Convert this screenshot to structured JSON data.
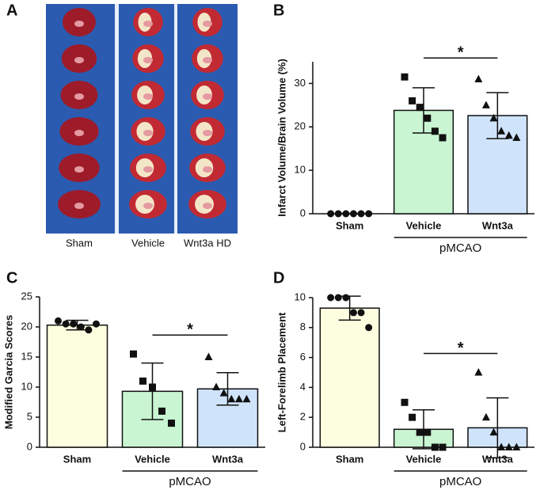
{
  "photo": {
    "panel": "A",
    "captions": [
      "Sham",
      "Vehicle",
      "Wnt3a HD"
    ]
  },
  "chart_data": [
    {
      "type": "bar",
      "panel": "B",
      "ylabel": "Infarct Volume/Brain Volume (%)",
      "categories": [
        "Sham",
        "Vehicle",
        "Wnt3a"
      ],
      "values": [
        0,
        23.8,
        22.6
      ],
      "errors": [
        0,
        5.2,
        5.3
      ],
      "colors": [
        "#fdfddf",
        "#c9f5d2",
        "#cfe3fa"
      ],
      "markers": [
        "circle",
        "square",
        "triangle"
      ],
      "points": [
        [
          0,
          0,
          0,
          0,
          0,
          0
        ],
        [
          31.5,
          26,
          24.5,
          22,
          19,
          17.5
        ],
        [
          31,
          25,
          22,
          19,
          18,
          17.5
        ]
      ],
      "ylim": [
        0,
        35
      ],
      "yticks": [
        0,
        10,
        20,
        30
      ],
      "group": {
        "label": "pMCAO",
        "categories": [
          "Vehicle",
          "Wnt3a"
        ]
      },
      "annotation": {
        "text": "*",
        "between": [
          "Vehicle",
          "Wnt3a"
        ]
      }
    },
    {
      "type": "bar",
      "panel": "C",
      "ylabel": "Modified Garcia Scores",
      "categories": [
        "Sham",
        "Vehicle",
        "Wnt3a"
      ],
      "values": [
        20.3,
        9.3,
        9.7
      ],
      "errors": [
        0.8,
        4.7,
        2.7
      ],
      "colors": [
        "#fdfddf",
        "#c9f5d2",
        "#cfe3fa"
      ],
      "markers": [
        "circle",
        "square",
        "triangle"
      ],
      "points": [
        [
          21,
          20.5,
          20.5,
          20,
          19.5,
          20.5
        ],
        [
          15.5,
          11,
          10,
          6,
          4
        ],
        [
          15,
          10,
          9,
          8,
          8,
          8
        ]
      ],
      "ylim": [
        0,
        25
      ],
      "yticks": [
        0,
        5,
        10,
        15,
        20,
        25
      ],
      "group": {
        "label": "pMCAO",
        "categories": [
          "Vehicle",
          "Wnt3a"
        ]
      },
      "annotation": {
        "text": "*",
        "between": [
          "Vehicle",
          "Wnt3a"
        ]
      }
    },
    {
      "type": "bar",
      "panel": "D",
      "ylabel": "Left-Forelimb Placement",
      "categories": [
        "Sham",
        "Vehicle",
        "Wnt3a"
      ],
      "values": [
        9.3,
        1.2,
        1.3
      ],
      "errors": [
        0.8,
        1.3,
        2.0
      ],
      "colors": [
        "#fdfddf",
        "#c9f5d2",
        "#cfe3fa"
      ],
      "markers": [
        "circle",
        "square",
        "triangle"
      ],
      "points": [
        [
          10,
          10,
          10,
          9,
          9,
          8
        ],
        [
          3,
          2,
          1,
          1,
          0,
          0
        ],
        [
          5,
          2,
          1,
          0,
          0,
          0
        ]
      ],
      "ylim": [
        0,
        10
      ],
      "yticks": [
        0,
        2,
        4,
        6,
        8,
        10
      ],
      "group": {
        "label": "pMCAO",
        "categories": [
          "Vehicle",
          "Wnt3a"
        ]
      },
      "annotation": {
        "text": "*",
        "between": [
          "Vehicle",
          "Wnt3a"
        ]
      }
    }
  ]
}
